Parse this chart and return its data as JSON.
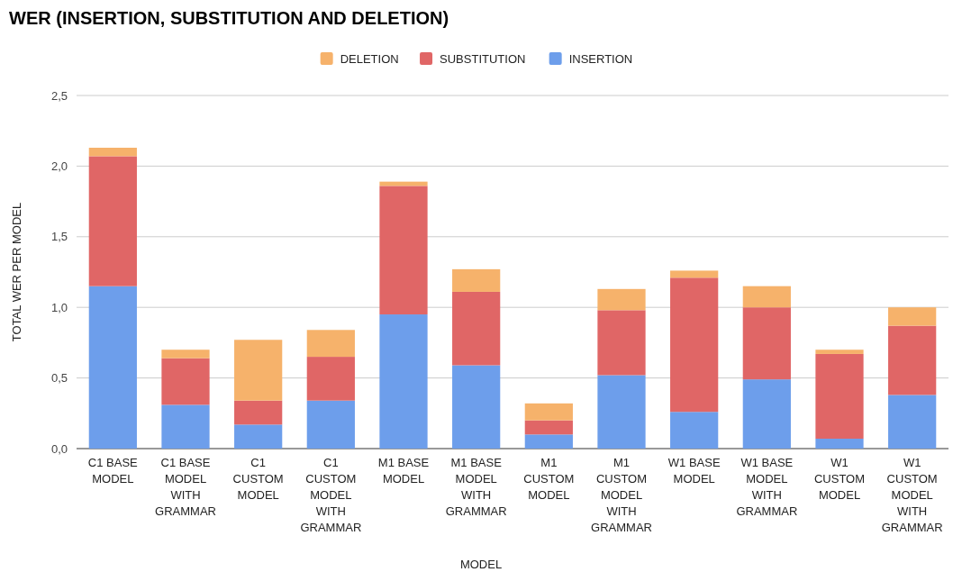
{
  "chart_data": {
    "type": "bar",
    "title": "WER (INSERTION, SUBSTITUTION AND DELETION)",
    "xlabel": "MODEL",
    "ylabel": "TOTAL WER PER MODEL",
    "categories": [
      "C1 BASE MODEL",
      "C1 BASE MODEL WITH GRAMMAR",
      "C1 CUSTOM MODEL",
      "C1 CUSTOM MODEL WITH GRAMMAR",
      "M1 BASE MODEL",
      "M1 BASE MODEL WITH GRAMMAR",
      "M1 CUSTOM MODEL",
      "M1 CUSTOM MODEL WITH GRAMMAR",
      "W1 BASE MODEL",
      "W1 BASE MODEL WITH GRAMMAR",
      "W1 CUSTOM MODEL",
      "W1 CUSTOM MODEL WITH GRAMMAR"
    ],
    "series": [
      {
        "name": "INSERTION",
        "color": "#6d9eeb",
        "values": [
          1.15,
          0.31,
          0.17,
          0.34,
          0.95,
          0.59,
          0.1,
          0.52,
          0.26,
          0.49,
          0.07,
          0.38
        ]
      },
      {
        "name": "SUBSTITUTION",
        "color": "#e06666",
        "values": [
          0.92,
          0.33,
          0.17,
          0.31,
          0.91,
          0.52,
          0.1,
          0.46,
          0.95,
          0.51,
          0.6,
          0.49
        ]
      },
      {
        "name": "DELETION",
        "color": "#f6b26b",
        "values": [
          0.06,
          0.06,
          0.43,
          0.19,
          0.03,
          0.16,
          0.12,
          0.15,
          0.05,
          0.15,
          0.03,
          0.13
        ]
      }
    ],
    "stacked": true,
    "ylim": [
      0,
      2.5
    ],
    "yticks": [
      {
        "value": 0,
        "label": "0,0"
      },
      {
        "value": 0.5,
        "label": "0,5"
      },
      {
        "value": 1,
        "label": "1,0"
      },
      {
        "value": 1.5,
        "label": "1,5"
      },
      {
        "value": 2,
        "label": "2,0"
      },
      {
        "value": 2.5,
        "label": "2,5"
      }
    ],
    "grid": "y",
    "legend": "top"
  }
}
